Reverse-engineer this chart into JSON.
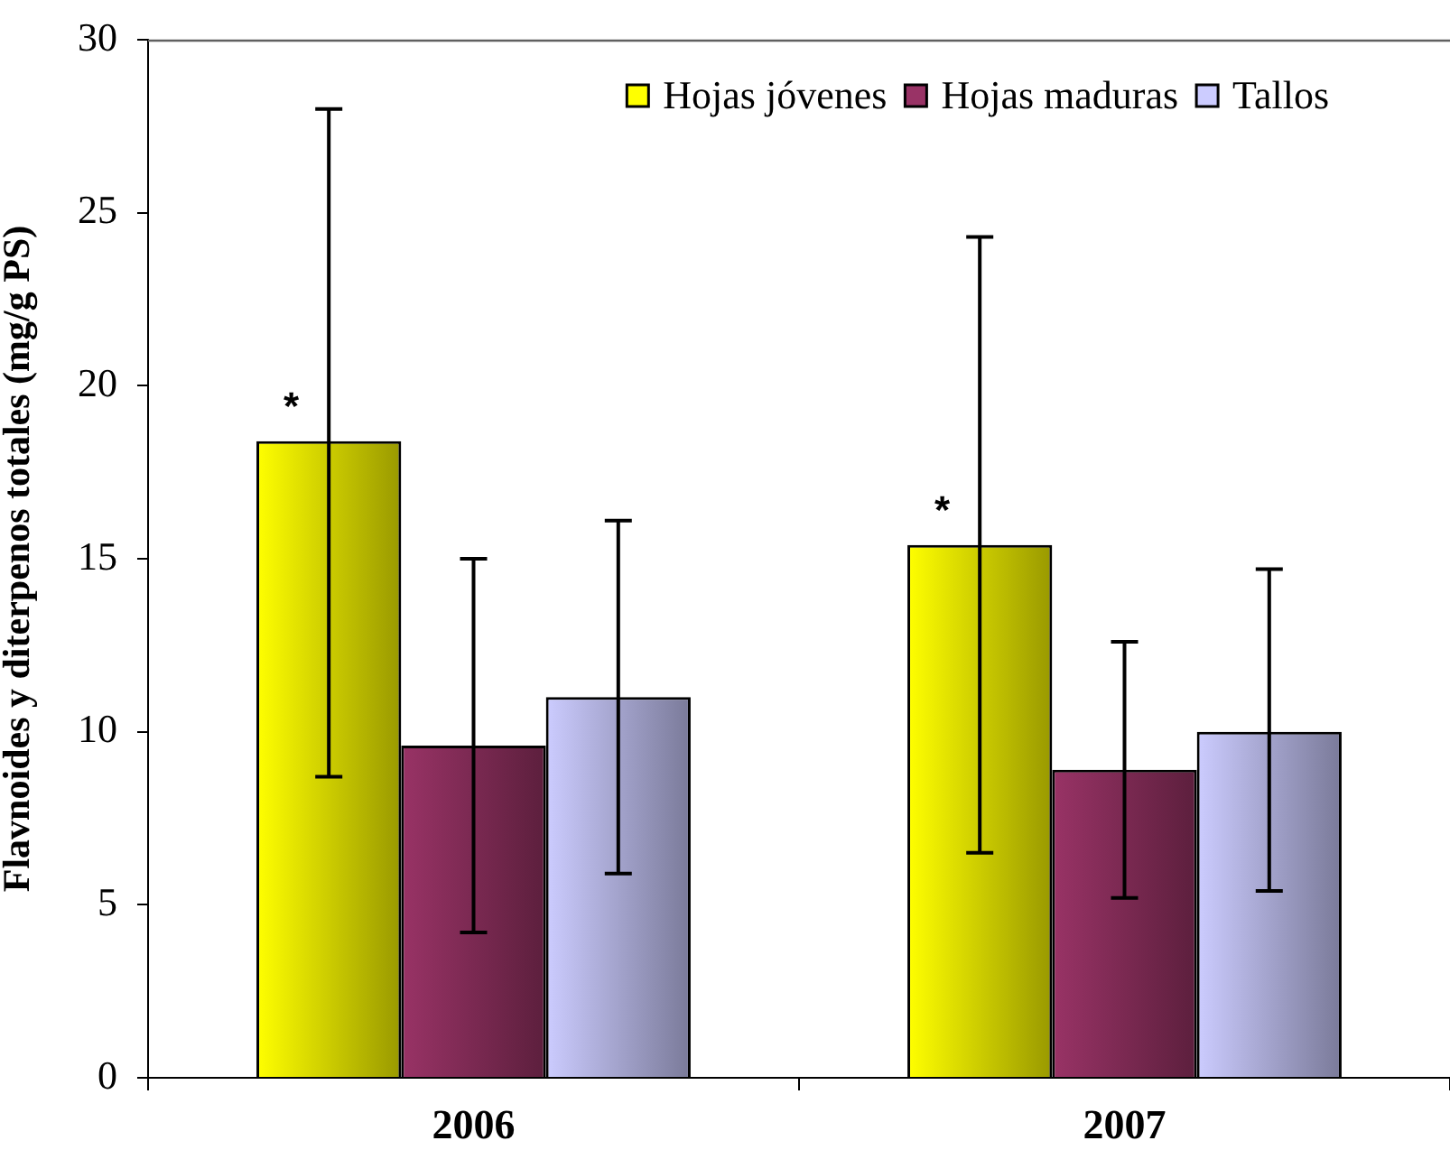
{
  "chart_data": {
    "type": "bar",
    "ylabel": "Flavnoides y diterpenos totales (mg/g PS)",
    "categories": [
      "2006",
      "2007"
    ],
    "series": [
      {
        "name": "Hojas jóvenes",
        "color": "#ffff00",
        "values": [
          18.4,
          15.4
        ],
        "errors": [
          [
            8.7,
            28.0
          ],
          [
            6.5,
            24.3
          ]
        ],
        "value_labels": [
          "*",
          "*"
        ]
      },
      {
        "name": "Hojas maduras",
        "color": "#993366",
        "values": [
          9.6,
          8.9
        ],
        "errors": [
          [
            4.2,
            15.0
          ],
          [
            5.2,
            12.6
          ]
        ]
      },
      {
        "name": "Tallos",
        "color": "#ccccff",
        "values": [
          11.0,
          10.0
        ],
        "errors": [
          [
            5.9,
            16.1
          ],
          [
            5.4,
            14.7
          ]
        ]
      }
    ],
    "ylim": [
      0,
      30
    ],
    "yticks": [
      0,
      5,
      10,
      15,
      20,
      25,
      30
    ],
    "legend": "top right"
  }
}
